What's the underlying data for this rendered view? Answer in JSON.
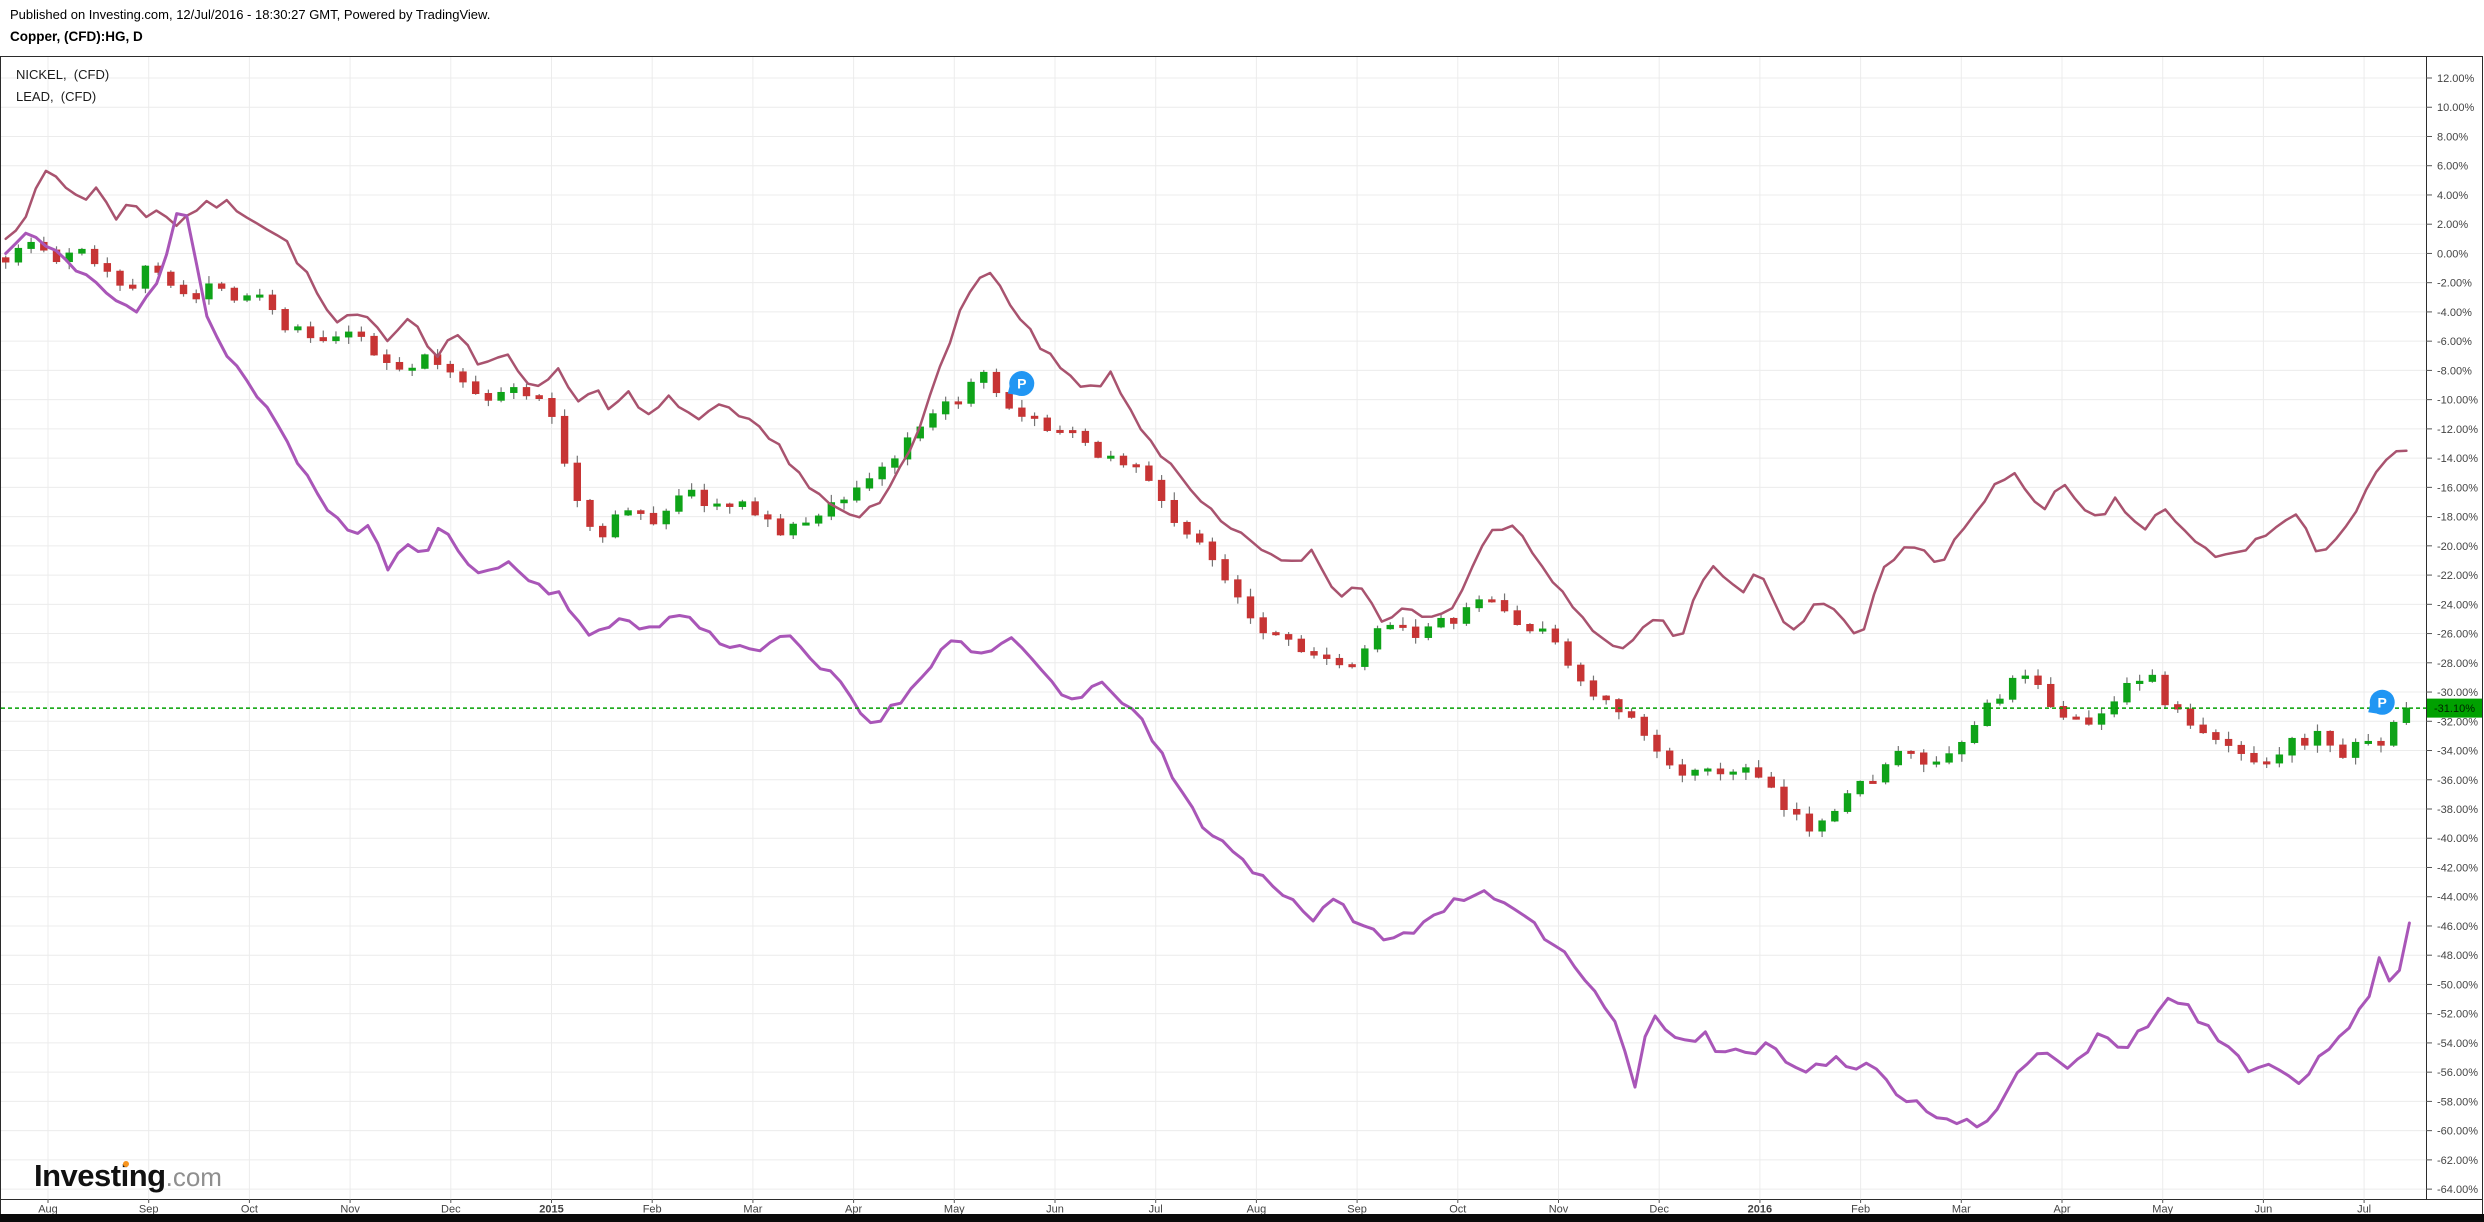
{
  "header": {
    "published_line": "Published on Investing.com, 12/Jul/2016 - 18:30:27 GMT, Powered by TradingView.",
    "symbol_line": "Copper, (CFD):HG, D"
  },
  "legend": {
    "items": [
      {
        "label": "NICKEL,  (CFD)"
      },
      {
        "label": "LEAD,  (CFD)"
      }
    ]
  },
  "logo": {
    "main": "Investing",
    "suffix": ".com",
    "accent_color": "#f7941d"
  },
  "price_label": {
    "text": "-31.10%",
    "value": -31.1,
    "color": "#00a000"
  },
  "markers": [
    {
      "label": "P",
      "month": 9.67,
      "value": -8.9
    },
    {
      "label": "P",
      "month": 23.18,
      "value": -30.7
    }
  ],
  "colors": {
    "candle_up": "#0fa319",
    "candle_down": "#c73434",
    "wick": "#757575",
    "nickel_line": "#a9536f",
    "lead_line": "#a956b8",
    "grid": "#ececec",
    "axis_text": "#444444",
    "border": "#2b2b2b",
    "tick": "#555555",
    "last_price": "#00a000",
    "marker_blue": "#2196f3",
    "bottom_bar": "#0a0a0a"
  },
  "chart_data": {
    "type": "mixed",
    "title": "Copper, (CFD):HG, D vs NICKEL (CFD) and LEAD (CFD), % change",
    "ylabel": "% change",
    "ylim": [
      -64,
      12
    ],
    "y_tick_step": 2,
    "grid": true,
    "legend_position": "top-left",
    "y_axis": {
      "labels": [
        "12.00%",
        "10.00%",
        "8.00%",
        "6.00%",
        "4.00%",
        "2.00%",
        "0.00%",
        "-2.00%",
        "-4.00%",
        "-6.00%",
        "-8.00%",
        "-10.00%",
        "-12.00%",
        "-14.00%",
        "-16.00%",
        "-18.00%",
        "-20.00%",
        "-22.00%",
        "-24.00%",
        "-26.00%",
        "-28.00%",
        "-30.00%",
        "-32.00%",
        "-34.00%",
        "-36.00%",
        "-38.00%",
        "-40.00%",
        "-42.00%",
        "-44.00%",
        "-46.00%",
        "-48.00%",
        "-50.00%",
        "-52.00%",
        "-54.00%",
        "-56.00%",
        "-58.00%",
        "-60.00%",
        "-62.00%",
        "-64.00%"
      ]
    },
    "x_axis": {
      "labels": [
        "Aug",
        "Sep",
        "Oct",
        "Nov",
        "Dec",
        "2015",
        "Feb",
        "Mar",
        "Apr",
        "May",
        "Jun",
        "Jul",
        "Aug",
        "Sep",
        "Oct",
        "Nov",
        "Dec",
        "2016",
        "Feb",
        "Mar",
        "Apr",
        "May",
        "Jun",
        "Jul"
      ]
    },
    "last_price": {
      "value": -31.1,
      "label": "-31.10%"
    },
    "series": [
      {
        "name": "Copper, (CFD):HG",
        "type": "candlestick",
        "anchors": {
          "m": [
            -0.42,
            -0.15,
            0.1,
            0.35,
            0.6,
            0.8,
            1.0,
            1.2,
            1.45,
            1.7,
            1.9,
            2.07,
            2.3,
            2.55,
            2.8,
            3.0,
            3.2,
            3.5,
            3.8,
            4.0,
            4.4,
            4.7,
            5.0,
            5.2,
            5.45,
            5.7,
            6.0,
            6.3,
            6.7,
            7.0,
            7.3,
            7.6,
            8.0,
            8.4,
            8.8,
            9.1,
            9.3,
            9.6,
            10.0,
            10.4,
            10.8,
            11.0,
            11.2,
            11.5,
            11.8,
            12.0,
            12.4,
            12.8,
            13.0,
            13.3,
            13.6,
            14.0,
            14.3,
            14.6,
            15.0,
            15.2,
            15.5,
            15.8,
            16.0,
            16.4,
            16.8,
            17.0,
            17.3,
            17.5,
            17.8,
            18.0,
            18.4,
            18.8,
            19.0,
            19.3,
            19.6,
            20.0,
            20.3,
            20.6,
            20.85,
            21.0,
            21.4,
            21.8,
            22.0,
            22.3,
            22.6,
            22.85,
            23.0,
            23.2,
            23.42
          ],
          "v": [
            -0.3,
            0.8,
            -0.6,
            0.2,
            -1.2,
            -2.4,
            -0.9,
            -1.6,
            -3.3,
            -1.8,
            -3.2,
            -2.2,
            -4.6,
            -5.6,
            -6.4,
            -5.2,
            -6.8,
            -7.8,
            -7.2,
            -8.3,
            -9.8,
            -9.2,
            -11.0,
            -16.0,
            -19.5,
            -17.5,
            -18.4,
            -16.2,
            -17.5,
            -17.3,
            -19.3,
            -18.0,
            -16.2,
            -14.0,
            -11.2,
            -9.5,
            -8.5,
            -11.4,
            -11.9,
            -13.5,
            -14.6,
            -16.2,
            -18.4,
            -20.5,
            -23.0,
            -25.4,
            -26.6,
            -28.5,
            -28.2,
            -24.9,
            -26.0,
            -24.9,
            -23.5,
            -25.3,
            -26.6,
            -29.3,
            -31.0,
            -32.5,
            -34.5,
            -35.8,
            -35.2,
            -36.0,
            -38.5,
            -39.2,
            -37.4,
            -36.4,
            -34.2,
            -35.3,
            -33.6,
            -30.5,
            -29.0,
            -31.3,
            -32.5,
            -29.5,
            -28.7,
            -30.4,
            -33.0,
            -34.2,
            -34.7,
            -33.4,
            -33.0,
            -34.7,
            -32.8,
            -33.5,
            -31.1
          ]
        }
      },
      {
        "name": "NICKEL, (CFD)",
        "type": "line",
        "anchors": {
          "m": [
            -0.42,
            -0.2,
            0.0,
            0.2,
            0.35,
            0.5,
            0.65,
            0.8,
            0.95,
            1.1,
            1.25,
            1.5,
            1.8,
            2.1,
            2.4,
            2.65,
            2.85,
            3.1,
            3.35,
            3.6,
            3.85,
            4.1,
            4.3,
            4.55,
            4.8,
            5.05,
            5.3,
            5.45,
            5.6,
            5.75,
            5.95,
            6.2,
            6.45,
            6.7,
            7.0,
            7.3,
            7.6,
            8.0,
            8.3,
            8.6,
            8.85,
            9.1,
            9.34,
            9.6,
            10.0,
            10.3,
            10.55,
            10.8,
            11.0,
            11.3,
            11.55,
            11.8,
            12.0,
            12.3,
            12.55,
            12.8,
            13.0,
            13.25,
            13.5,
            13.8,
            14.0,
            14.3,
            14.55,
            14.8,
            15.0,
            15.3,
            15.55,
            15.8,
            16.0,
            16.2,
            16.5,
            16.8,
            17.0,
            17.3,
            17.6,
            18.0,
            18.2,
            18.5,
            18.8,
            19.0,
            19.3,
            19.55,
            19.8,
            20.0,
            20.3,
            20.55,
            20.8,
            21.0,
            21.3,
            21.6,
            22.0,
            22.3,
            22.55,
            22.8,
            23.0,
            23.2,
            23.42
          ],
          "v": [
            1.0,
            3.0,
            5.8,
            4.4,
            3.7,
            4.6,
            2.2,
            3.8,
            2.3,
            3.3,
            1.9,
            3.2,
            3.4,
            2.2,
            0.5,
            -2.5,
            -4.9,
            -4.2,
            -5.8,
            -4.2,
            -6.9,
            -5.3,
            -8.0,
            -6.9,
            -9.1,
            -8.0,
            -10.2,
            -9.1,
            -10.7,
            -9.6,
            -11.3,
            -9.8,
            -11.5,
            -10.5,
            -11.8,
            -13.5,
            -16.3,
            -18.4,
            -16.8,
            -13.0,
            -7.5,
            -3.5,
            -0.8,
            -4.2,
            -7.6,
            -9.5,
            -8.4,
            -11.3,
            -13.2,
            -16.0,
            -17.8,
            -19.3,
            -19.8,
            -21.5,
            -20.3,
            -23.5,
            -22.4,
            -25.0,
            -23.8,
            -25.4,
            -23.4,
            -19.2,
            -18.5,
            -21.3,
            -23.0,
            -25.4,
            -27.1,
            -26.0,
            -25.0,
            -26.6,
            -21.0,
            -23.4,
            -21.8,
            -26.0,
            -23.8,
            -26.4,
            -22.0,
            -19.7,
            -21.4,
            -19.0,
            -16.0,
            -15.3,
            -17.4,
            -15.9,
            -18.4,
            -16.9,
            -19.0,
            -17.5,
            -19.7,
            -20.9,
            -19.4,
            -17.9,
            -20.4,
            -18.9,
            -16.7,
            -14.2,
            -13.5
          ]
        }
      },
      {
        "name": "LEAD, (CFD)",
        "type": "line",
        "anchors": {
          "m": [
            -0.42,
            -0.2,
            0.0,
            0.3,
            0.55,
            0.85,
            1.1,
            1.33,
            1.6,
            1.9,
            2.2,
            2.5,
            2.8,
            3.0,
            3.2,
            3.35,
            3.55,
            3.7,
            3.9,
            4.1,
            4.35,
            4.6,
            4.8,
            5.1,
            5.4,
            5.7,
            6.0,
            6.3,
            6.6,
            7.0,
            7.3,
            7.6,
            7.9,
            8.15,
            8.45,
            8.7,
            9.0,
            9.3,
            9.6,
            9.9,
            10.2,
            10.5,
            10.8,
            11.0,
            11.25,
            11.5,
            11.75,
            12.0,
            12.3,
            12.55,
            12.8,
            13.0,
            13.3,
            13.6,
            13.9,
            14.15,
            14.45,
            14.7,
            15.0,
            15.3,
            15.55,
            15.77,
            15.9,
            16.1,
            16.3,
            16.45,
            16.6,
            16.75,
            16.9,
            17.05,
            17.2,
            17.35,
            17.5,
            17.65,
            17.8,
            17.95,
            18.1,
            18.25,
            18.4,
            18.6,
            18.8,
            19.0,
            19.2,
            19.4,
            19.6,
            19.85,
            20.1,
            20.35,
            20.6,
            20.85,
            21.1,
            21.35,
            21.6,
            21.85,
            22.1,
            22.35,
            22.6,
            22.85,
            23.0,
            23.15,
            23.3,
            23.45
          ],
          "v": [
            0.0,
            1.5,
            0.3,
            -1.0,
            -2.5,
            -4.2,
            -2.0,
            4.4,
            -5.0,
            -8.0,
            -11.0,
            -14.5,
            -17.5,
            -19.5,
            -18.2,
            -21.8,
            -19.8,
            -20.8,
            -18.8,
            -20.5,
            -22.0,
            -21.0,
            -22.6,
            -23.3,
            -26.5,
            -24.8,
            -25.8,
            -24.5,
            -26.3,
            -27.2,
            -26.0,
            -28.0,
            -29.5,
            -32.2,
            -30.8,
            -28.5,
            -26.3,
            -27.5,
            -26.5,
            -28.8,
            -30.8,
            -29.3,
            -31.5,
            -33.6,
            -36.9,
            -39.3,
            -40.8,
            -42.4,
            -43.8,
            -45.5,
            -44.3,
            -45.6,
            -47.2,
            -46.0,
            -44.6,
            -43.6,
            -44.5,
            -45.8,
            -47.3,
            -50.0,
            -52.0,
            -57.1,
            -51.9,
            -53.3,
            -54.0,
            -53.5,
            -54.8,
            -54.2,
            -55.0,
            -54.0,
            -54.7,
            -55.4,
            -55.9,
            -55.3,
            -55.1,
            -55.9,
            -55.5,
            -56.7,
            -57.5,
            -58.3,
            -59.0,
            -59.3,
            -60.0,
            -58.2,
            -55.6,
            -54.5,
            -55.7,
            -53.4,
            -54.8,
            -52.6,
            -50.8,
            -52.3,
            -54.2,
            -55.9,
            -55.3,
            -56.5,
            -54.9,
            -52.8,
            -51.6,
            -48.4,
            -50.2,
            -45.8
          ]
        }
      }
    ]
  }
}
